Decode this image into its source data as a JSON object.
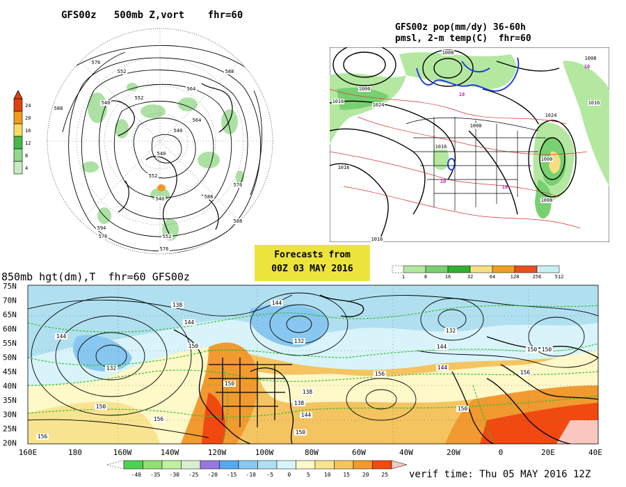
{
  "panel_500mb": {
    "title": "GFS00z   500mb Z,vort    fhr=60",
    "colorbar_ticks": [
      "24",
      "20",
      "16",
      "12",
      "8",
      "4"
    ],
    "contour_labels": [
      "576",
      "552",
      "588",
      "564",
      "540",
      "552",
      "564",
      "540",
      "540",
      "552",
      "588",
      "576",
      "588",
      "540",
      "594",
      "576",
      "552",
      "576",
      "588"
    ]
  },
  "panel_precip": {
    "title_line1": "GFS00z pop(mm/dy) 36-60h",
    "title_line2": "pmsl, 2-m temp(C)  fhr=60",
    "isobar_labels": [
      "1000",
      "1008",
      "1016",
      "1024",
      "1008",
      "1016",
      "1008",
      "1016",
      "1000",
      "1008",
      "1016",
      "1024",
      "1016"
    ],
    "temp_labels": [
      "10",
      "10",
      "10",
      "10"
    ],
    "colorbar_ticks": [
      "1",
      "8",
      "16",
      "32",
      "64",
      "128",
      "256",
      "512"
    ]
  },
  "banner": {
    "line1": "Forecasts from",
    "line2": "00Z 03 MAY 2016"
  },
  "panel_850mb": {
    "title": "850mb hgt(dm),T  fhr=60 GFS00z",
    "lat_labels": [
      "75N",
      "70N",
      "65N",
      "60N",
      "55N",
      "50N",
      "45N",
      "40N",
      "35N",
      "30N",
      "25N",
      "20N"
    ],
    "lon_labels": [
      "160E",
      "180",
      "160W",
      "140W",
      "120W",
      "100W",
      "80W",
      "60W",
      "40W",
      "20W",
      "0",
      "20E",
      "40E"
    ],
    "contour_labels": [
      "138",
      "144",
      "144",
      "150",
      "144",
      "132",
      "138",
      "144",
      "132",
      "144",
      "150",
      "132",
      "150",
      "156",
      "156",
      "150",
      "156",
      "138",
      "144",
      "150",
      "156",
      "150",
      "150"
    ],
    "colorbar_ticks": [
      "-40",
      "-35",
      "-30",
      "-25",
      "-20",
      "-15",
      "-10",
      "-5",
      "0",
      "5",
      "10",
      "15",
      "20",
      "25"
    ],
    "verif_time": "verif time: Thu 05 MAY 2016 12Z"
  },
  "colors": {
    "vort_bar": [
      "#ffffff",
      "#c8ecc0",
      "#8ed88a",
      "#48b848",
      "#f4dc60",
      "#f09a20",
      "#e04010"
    ],
    "precip_bar": [
      "#ffffff",
      "#b4e8a0",
      "#78d070",
      "#30b030",
      "#f4e080",
      "#f0a020",
      "#e85020",
      "#c8f0f4"
    ],
    "temp_bar": [
      "#50d050",
      "#90e070",
      "#c0f0a0",
      "#d8f0d0",
      "#9878e0",
      "#58a8f0",
      "#88c8f0",
      "#b0e0f0",
      "#d8f4fa",
      "#fff8c8",
      "#f8e490",
      "#f4c460",
      "#f09a30",
      "#f04a10",
      "#f8c8c0"
    ]
  }
}
